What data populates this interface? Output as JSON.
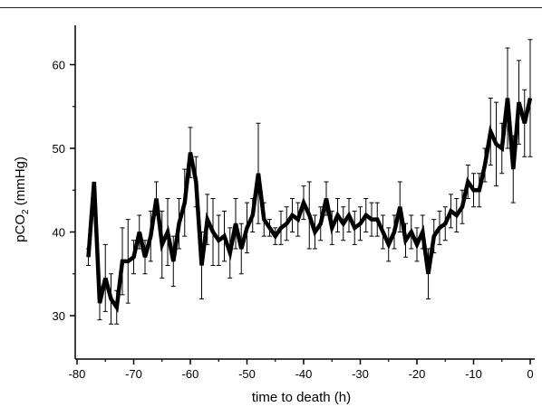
{
  "chart_data": {
    "type": "line",
    "title": "",
    "xlabel": "time to death (h)",
    "ylabel_main": "pCO",
    "ylabel_sub": "2",
    "ylabel_unit": " (mmHg)",
    "xlim": [
      -80,
      2
    ],
    "ylim": [
      25,
      65
    ],
    "xticks": [
      -80,
      -70,
      -60,
      -50,
      -40,
      -30,
      -20,
      -10,
      0
    ],
    "yticks": [
      30,
      40,
      50,
      60
    ],
    "grid": false,
    "legend": "none",
    "line_color": "#000000",
    "series": [
      {
        "x": [
          -78,
          -77,
          -76,
          -75,
          -74,
          -73,
          -72,
          -71,
          -70,
          -69,
          -68,
          -67,
          -66,
          -65,
          -64,
          -63,
          -62,
          -61,
          -60,
          -59,
          -58,
          -57,
          -56,
          -55,
          -54,
          -53,
          -52,
          -51,
          -50,
          -49,
          -48,
          -47,
          -46,
          -45,
          -44,
          -43,
          -42,
          -41,
          -40,
          -39,
          -38,
          -37,
          -36,
          -35,
          -34,
          -33,
          -32,
          -31,
          -30,
          -29,
          -28,
          -27,
          -26,
          -25,
          -24,
          -23,
          -22,
          -21,
          -20,
          -19,
          -18,
          -17,
          -16,
          -15,
          -14,
          -13,
          -12,
          -11,
          -10,
          -9,
          -8,
          -7,
          -6,
          -5,
          -4,
          -3,
          -2,
          -1,
          0
        ],
        "y": [
          37,
          46,
          31.5,
          34.5,
          32,
          31,
          36.5,
          36.5,
          37,
          40,
          37,
          39.5,
          44,
          38.5,
          40,
          36.5,
          41,
          43.5,
          49.5,
          46,
          36,
          41.5,
          40,
          39,
          39.5,
          37.5,
          41,
          38,
          40.5,
          42,
          47,
          41.5,
          40.5,
          39.5,
          40.5,
          41,
          42,
          41.5,
          43.5,
          42,
          40,
          41,
          44,
          40.5,
          42,
          41,
          42,
          40.5,
          41,
          42,
          41.5,
          41.5,
          40,
          38.5,
          40,
          43,
          39,
          40,
          38.5,
          40,
          35,
          39.5,
          40.5,
          41,
          42.5,
          42,
          43,
          46,
          45,
          45,
          48,
          52,
          50.5,
          50,
          56,
          47.5,
          55.5,
          53,
          56
        ],
        "err": [
          1,
          0,
          2,
          4,
          3,
          2,
          4,
          5,
          2,
          2,
          2,
          3,
          2,
          4,
          4,
          3,
          3,
          4,
          3,
          3,
          4,
          3,
          4,
          3,
          3,
          3,
          3,
          3,
          3,
          2,
          6,
          2,
          1,
          1,
          2,
          2,
          2,
          2,
          2,
          4,
          2,
          2,
          2,
          2,
          2,
          2,
          2,
          2,
          2,
          2,
          2,
          2,
          2,
          2,
          2,
          3,
          2,
          2,
          2,
          2,
          3,
          2,
          2,
          2,
          2,
          2,
          2,
          2,
          2,
          2,
          2,
          4,
          5,
          3,
          6,
          4,
          5,
          4,
          7
        ]
      }
    ]
  }
}
